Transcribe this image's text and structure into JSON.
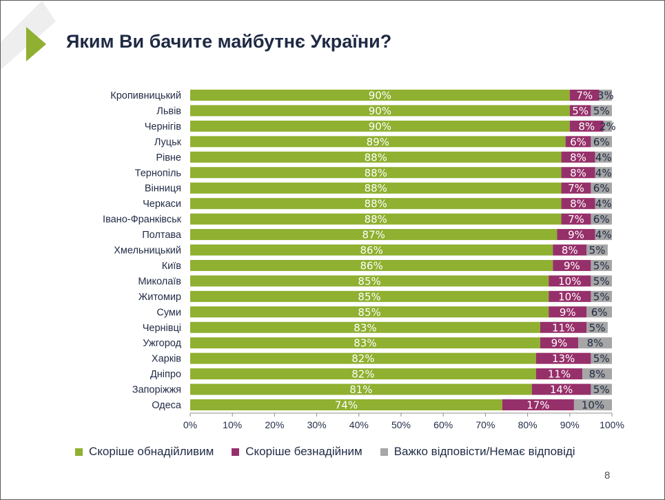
{
  "slide": {
    "title": "Яким Ви бачите майбутнє України?",
    "page_number": "8"
  },
  "colors": {
    "hopeful": "#8fb030",
    "hopeless": "#96306a",
    "hard": "#a6a6a6",
    "accent_arrow": "#8fb030"
  },
  "chart_data": {
    "type": "bar",
    "orientation": "horizontal",
    "stacked": true,
    "title": "Яким Ви бачите майбутнє України?",
    "xlim": [
      0,
      100
    ],
    "x_ticks": [
      "0%",
      "10%",
      "20%",
      "30%",
      "40%",
      "50%",
      "60%",
      "70%",
      "80%",
      "90%",
      "100%"
    ],
    "legend_position": "bottom",
    "categories": [
      "Кропивницький",
      "Львів",
      "Чернігів",
      "Луцьк",
      "Рівне",
      "Тернопіль",
      "Вінниця",
      "Черкаси",
      "Івано-Франківськ",
      "Полтава",
      "Хмельницький",
      "Київ",
      "Миколаїв",
      "Житомир",
      "Суми",
      "Чернівці",
      "Ужгород",
      "Харків",
      "Дніпро",
      "Запоріжжя",
      "Одеса"
    ],
    "series": [
      {
        "name": "Скоріше обнадійливим",
        "color": "#8fb030",
        "values": [
          90,
          90,
          90,
          89,
          88,
          88,
          88,
          88,
          88,
          87,
          86,
          86,
          85,
          85,
          85,
          83,
          83,
          82,
          82,
          81,
          74
        ],
        "labels": [
          "90%",
          "90%",
          "90%",
          "89%",
          "88%",
          "88%",
          "88%",
          "88%",
          "88%",
          "87%",
          "86%",
          "86%",
          "85%",
          "85%",
          "85%",
          "83%",
          "83%",
          "82%",
          "82%",
          "81%",
          "74%"
        ]
      },
      {
        "name": "Скоріше безнадійним",
        "color": "#96306a",
        "values": [
          7,
          5,
          8,
          6,
          8,
          8,
          7,
          8,
          7,
          9,
          8,
          9,
          10,
          10,
          9,
          11,
          9,
          13,
          11,
          14,
          17
        ],
        "labels": [
          "7%",
          "5%",
          "8%",
          "6%",
          "8%",
          "8%",
          "7%",
          "8%",
          "7%",
          "9%",
          "8%",
          "9%",
          "10%",
          "10%",
          "9%",
          "11%",
          "9%",
          "13%",
          "11%",
          "14%",
          "17%"
        ]
      },
      {
        "name": "Важко відповісти/Немає відповіді",
        "color": "#a6a6a6",
        "values": [
          3,
          5,
          2,
          6,
          4,
          4,
          6,
          4,
          6,
          4,
          5,
          5,
          5,
          5,
          6,
          5,
          8,
          5,
          8,
          5,
          10
        ],
        "labels": [
          "3%",
          "5%",
          "2%",
          "6%",
          "4%",
          "4%",
          "6%",
          "4%",
          "6%",
          "4%",
          "5%",
          "5%",
          "5%",
          "5%",
          "6%",
          "5%",
          "8%",
          "5%",
          "8%",
          "5%",
          "10%"
        ]
      }
    ]
  }
}
